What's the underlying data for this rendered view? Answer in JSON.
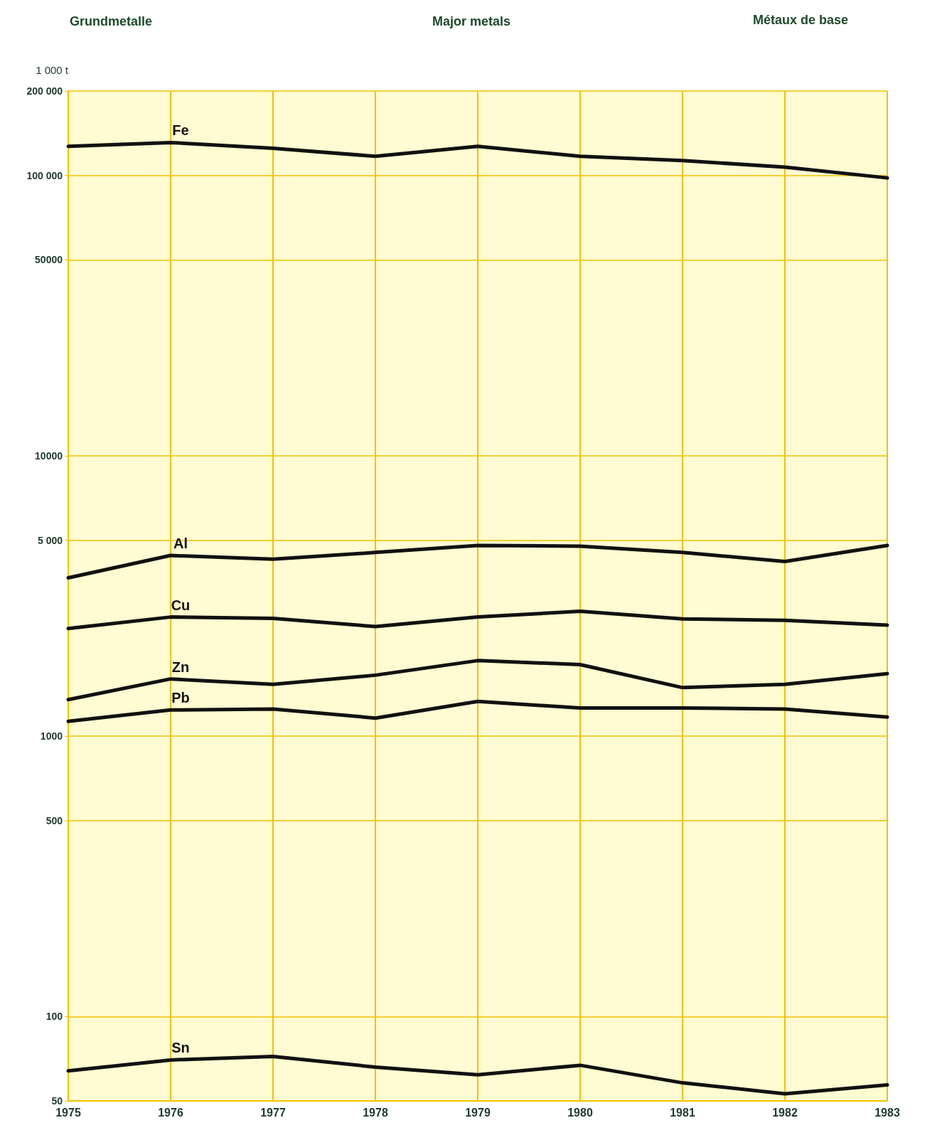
{
  "chart_data": {
    "type": "line",
    "title": "Major metals",
    "annotations": [
      "Grundmetalle",
      "Métaux de base"
    ],
    "ylabel": "1 000 t",
    "categories": [
      "1975",
      "1976",
      "1977",
      "1978",
      "1979",
      "1980",
      "1981",
      "1982",
      "1983"
    ],
    "series": [
      {
        "name": "Fe",
        "color": "#111111",
        "values": [
          127000,
          131000,
          125000,
          117000,
          127000,
          117000,
          113000,
          107000,
          98000
        ]
      },
      {
        "name": "Al",
        "color": "#111111",
        "values": [
          3670,
          4410,
          4280,
          4520,
          4790,
          4760,
          4520,
          4200,
          4790
        ]
      },
      {
        "name": "Cu",
        "color": "#111111",
        "values": [
          2420,
          2660,
          2630,
          2460,
          2660,
          2790,
          2620,
          2590,
          2490
        ]
      },
      {
        "name": "Zn",
        "color": "#111111",
        "values": [
          1350,
          1600,
          1530,
          1650,
          1860,
          1800,
          1490,
          1530,
          1670
        ]
      },
      {
        "name": "Pb",
        "color": "#111111",
        "values": [
          1130,
          1240,
          1250,
          1160,
          1330,
          1260,
          1260,
          1250,
          1170
        ]
      },
      {
        "name": "Sn",
        "color": "#111111",
        "values": [
          64,
          70,
          72,
          66,
          62,
          67,
          58,
          53,
          57
        ]
      }
    ],
    "log": "y",
    "ylim": [
      50,
      200000
    ],
    "yticks": [
      50,
      100,
      500,
      1000,
      {
        "value": 5000,
        "label": "5 000"
      },
      10000,
      50000,
      {
        "value": 100000,
        "label": "100 000"
      },
      {
        "value": 200000,
        "label": "200 000"
      }
    ],
    "grid": true,
    "legend": false,
    "marker": "none",
    "line_style": "solid"
  }
}
